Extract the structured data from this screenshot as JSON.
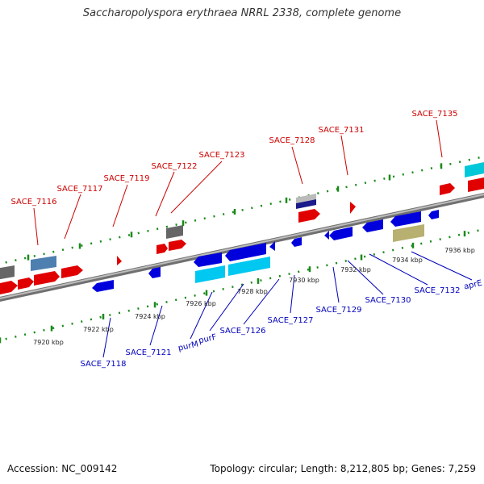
{
  "title": "Saccharopolyspora erythraea NRRL 2338, complete genome",
  "footer": {
    "accession": "Accession: NC_009142",
    "summary": "Topology: circular; Length: 8,212,805 bp; Genes: 7,259"
  },
  "colors": {
    "backbone": "#888888",
    "tick": "#1a8a1a",
    "label_forward": "#cc0000",
    "label_reverse": "#0000bb"
  },
  "kbp_labels": [
    "7920 kbp",
    "7922 kbp",
    "7924 kbp",
    "7926 kbp",
    "7928 kbp",
    "7930 kbp",
    "7932 kbp",
    "7934 kbp",
    "7936 kbp"
  ],
  "forward_labels": [
    "SACE_7116",
    "SACE_7117",
    "SACE_7119",
    "SACE_7122",
    "SACE_7123",
    "SACE_7128",
    "SACE_7131",
    "SACE_7135"
  ],
  "reverse_labels": [
    "SACE_7118",
    "SACE_7121",
    "purM",
    "purF",
    "SACE_7126",
    "SACE_7127",
    "SACE_7129",
    "SACE_7130",
    "SACE_7132",
    "aprE"
  ]
}
